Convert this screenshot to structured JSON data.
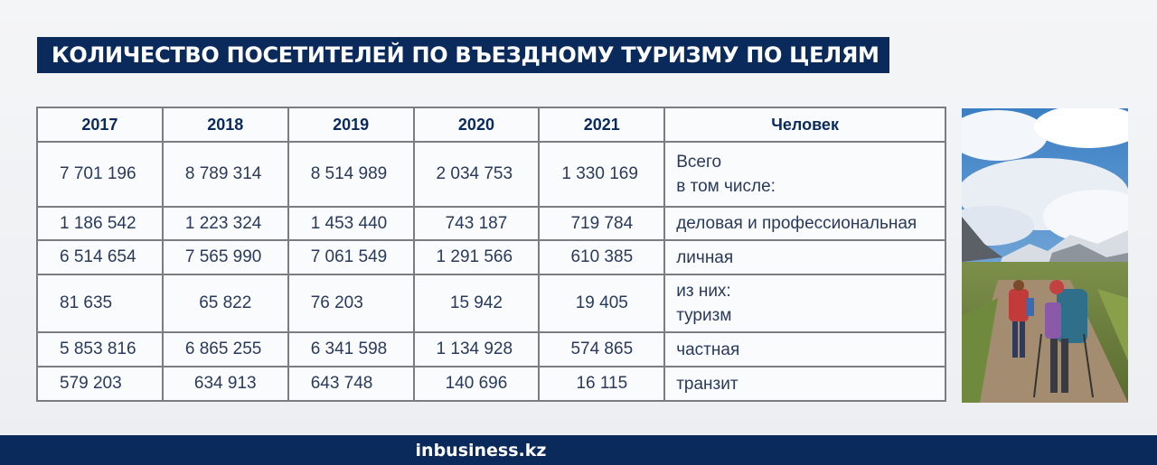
{
  "title": "КОЛИЧЕСТВО ПОСЕТИТЕЛЕЙ ПО ВЪЕЗДНОМУ ТУРИЗМУ ПО ЦЕЛЯМ",
  "table": {
    "headers": [
      "2017",
      "2018",
      "2019",
      "2020",
      "2021",
      "Человек"
    ],
    "rows": [
      {
        "values": [
          "7 701 196",
          "8 789 314",
          "8 514 989",
          "2 034 753",
          "1 330 169"
        ],
        "label_lines": [
          "Всего",
          "в том числе:"
        ]
      },
      {
        "values": [
          "1 186 542",
          "1 223 324",
          "1 453 440",
          "743 187",
          "719 784"
        ],
        "label_lines": [
          "деловая и профессиональная"
        ]
      },
      {
        "values": [
          "6 514 654",
          "7 565 990",
          "7 061 549",
          "1 291 566",
          "610 385"
        ],
        "label_lines": [
          "личная"
        ]
      },
      {
        "values": [
          "81 635",
          "65 822",
          "76 203",
          "15 942",
          "19 405"
        ],
        "label_lines": [
          "из них:",
          "туризм"
        ]
      },
      {
        "values": [
          "5 853 816",
          "6 865 255",
          "6 341 598",
          "1 134 928",
          "574 865"
        ],
        "label_lines": [
          "частная"
        ]
      },
      {
        "values": [
          "579 203",
          "634 913",
          "643 748",
          "140 696",
          "16 115"
        ],
        "label_lines": [
          "транзит"
        ]
      }
    ]
  },
  "footer": {
    "logo": "inbusiness.kz"
  },
  "colors": {
    "brand_navy": "#0b2a5c",
    "grid": "#7a7c80"
  }
}
